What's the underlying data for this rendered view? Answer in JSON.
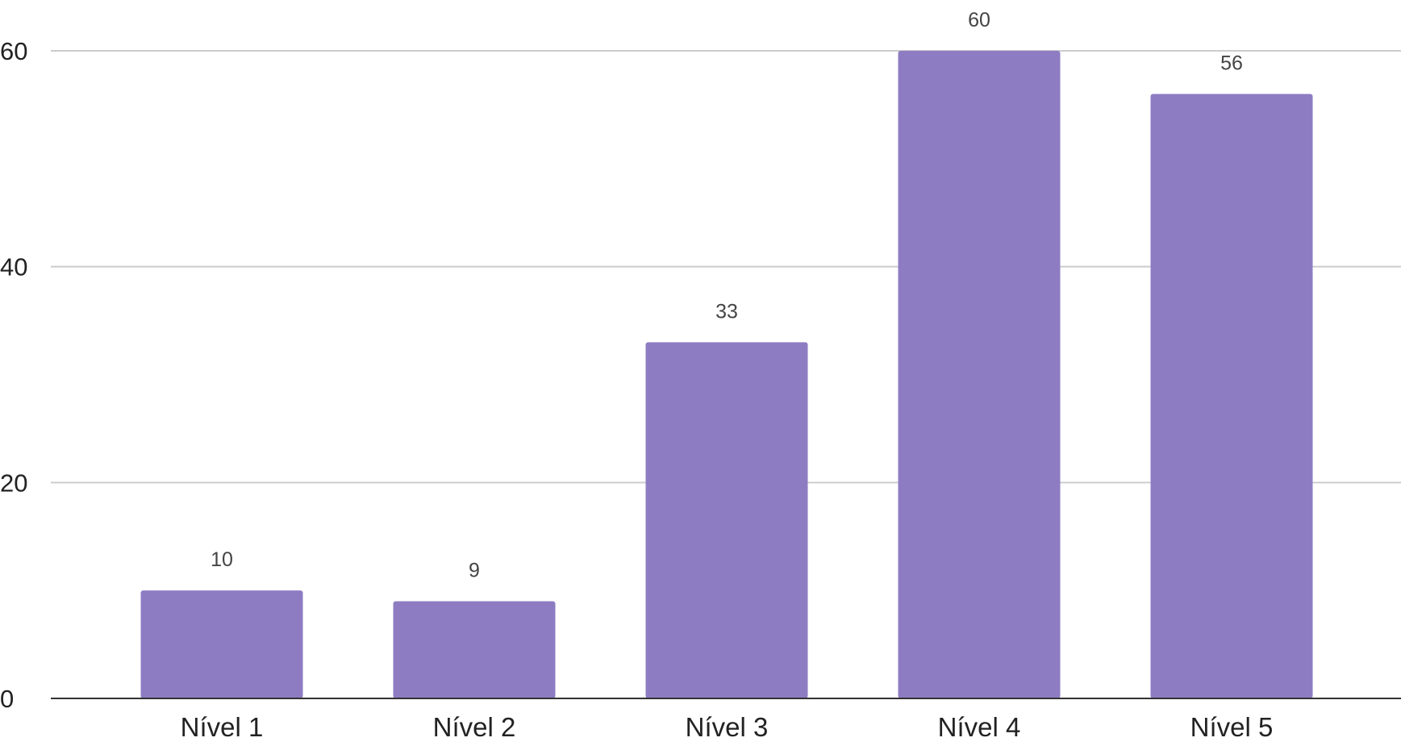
{
  "chart_data": {
    "type": "bar",
    "categories": [
      "Nível 1",
      "Nível 2",
      "Nível 3",
      "Nível 4",
      "Nível 5"
    ],
    "values": [
      10,
      9,
      33,
      60,
      56
    ],
    "data_labels": [
      "10",
      "9",
      "33",
      "60",
      "56"
    ],
    "y_ticks": [
      0,
      20,
      40,
      60
    ],
    "ylim": [
      0,
      60
    ],
    "grid": true,
    "legend": "none",
    "colors": {
      "bar": "#8e7cc3",
      "gridline": "#cccccc",
      "baseline": "#333333"
    }
  }
}
